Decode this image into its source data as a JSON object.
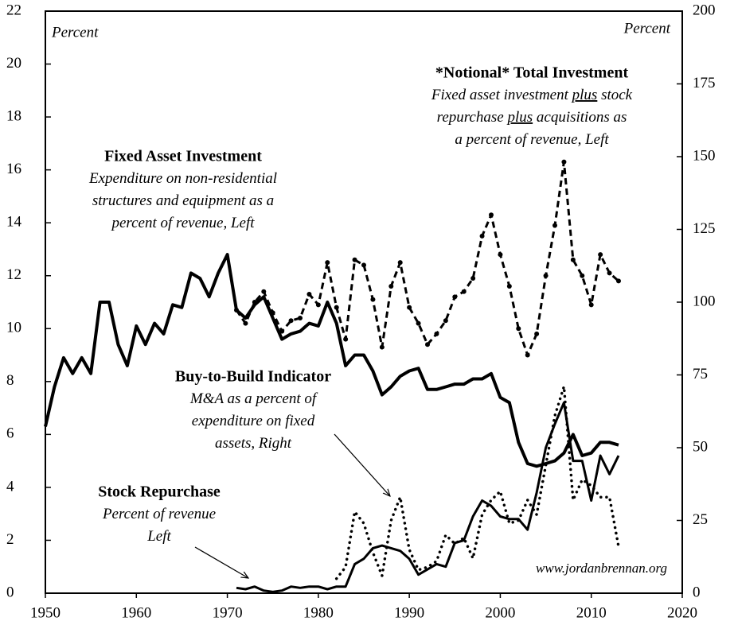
{
  "chart_data": {
    "type": "line",
    "xlim": [
      1950,
      2020
    ],
    "xticks": [
      1950,
      1960,
      1970,
      1980,
      1990,
      2000,
      2010,
      2020
    ],
    "ylim": [
      0,
      22
    ],
    "yticks": [
      0,
      2,
      4,
      6,
      8,
      10,
      12,
      14,
      16,
      18,
      20,
      22
    ],
    "y2lim": [
      0,
      200
    ],
    "y2ticks": [
      0,
      25,
      50,
      75,
      100,
      125,
      150,
      175,
      200
    ],
    "ylabel": "Percent",
    "y2label": "Percent",
    "source": "www.jordanbrennan.org",
    "series": [
      {
        "name": "Fixed Asset Investment",
        "color": "#000000",
        "style": "solid",
        "width": 4,
        "x": [
          1950,
          1951,
          1952,
          1953,
          1954,
          1955,
          1956,
          1957,
          1958,
          1959,
          1960,
          1961,
          1962,
          1963,
          1964,
          1965,
          1966,
          1967,
          1968,
          1969,
          1970,
          1971,
          1972,
          1973,
          1974,
          1975,
          1976,
          1977,
          1978,
          1979,
          1980,
          1981,
          1982,
          1983,
          1984,
          1985,
          1986,
          1987,
          1988,
          1989,
          1990,
          1991,
          1992,
          1993,
          1994,
          1995,
          1996,
          1997,
          1998,
          1999,
          2000,
          2001,
          2002,
          2003,
          2004,
          2005,
          2006,
          2007,
          2008,
          2009,
          2010,
          2011,
          2012,
          2013
        ],
        "values": [
          6.3,
          7.8,
          8.9,
          8.3,
          8.9,
          8.3,
          11.0,
          11.0,
          9.4,
          8.6,
          10.1,
          9.4,
          10.2,
          9.8,
          10.9,
          10.8,
          12.1,
          11.9,
          11.2,
          12.1,
          12.8,
          10.7,
          10.4,
          10.9,
          11.2,
          10.4,
          9.6,
          9.8,
          9.9,
          10.2,
          10.1,
          11.0,
          10.2,
          8.6,
          9.0,
          9.0,
          8.4,
          7.5,
          7.8,
          8.2,
          8.4,
          8.5,
          7.7,
          7.7,
          7.8,
          7.9,
          7.9,
          8.1,
          8.1,
          8.3,
          7.4,
          7.2,
          5.7,
          4.9,
          4.8,
          4.9,
          5.0,
          5.3,
          6.0,
          5.2,
          5.3,
          5.7,
          5.7,
          5.6
        ]
      },
      {
        "name": "*Notional* Total Investment",
        "color": "#000000",
        "style": "dashed",
        "width": 3,
        "markers": true,
        "x": [
          1971,
          1972,
          1973,
          1974,
          1975,
          1976,
          1977,
          1978,
          1979,
          1980,
          1981,
          1982,
          1983,
          1984,
          1985,
          1986,
          1987,
          1988,
          1989,
          1990,
          1991,
          1992,
          1993,
          1994,
          1995,
          1996,
          1997,
          1998,
          1999,
          2000,
          2001,
          2002,
          2003,
          2004,
          2005,
          2006,
          2007,
          2008,
          2009,
          2010,
          2011,
          2012,
          2013
        ],
        "values": [
          10.7,
          10.2,
          11.0,
          11.4,
          10.6,
          9.9,
          10.3,
          10.4,
          11.3,
          10.9,
          12.5,
          10.8,
          9.6,
          12.6,
          12.4,
          11.1,
          9.3,
          11.6,
          12.5,
          10.8,
          10.2,
          9.4,
          9.8,
          10.3,
          11.2,
          11.4,
          11.9,
          13.5,
          14.3,
          12.8,
          11.6,
          10.0,
          9.0,
          9.8,
          12.0,
          13.9,
          16.3,
          12.6,
          12.0,
          10.9,
          12.8,
          12.1,
          11.8
        ]
      },
      {
        "name": "Stock Repurchase",
        "color": "#000000",
        "style": "solid",
        "width": 3,
        "x": [
          1971,
          1972,
          1973,
          1974,
          1975,
          1976,
          1977,
          1978,
          1979,
          1980,
          1981,
          1982,
          1983,
          1984,
          1985,
          1986,
          1987,
          1988,
          1989,
          1990,
          1991,
          1992,
          1993,
          1994,
          1995,
          1996,
          1997,
          1998,
          1999,
          2000,
          2001,
          2002,
          2003,
          2004,
          2005,
          2006,
          2007,
          2008,
          2009,
          2010,
          2011,
          2012,
          2013
        ],
        "values": [
          0.2,
          0.15,
          0.25,
          0.1,
          0.05,
          0.1,
          0.25,
          0.2,
          0.25,
          0.25,
          0.15,
          0.25,
          0.25,
          1.1,
          1.3,
          1.7,
          1.8,
          1.7,
          1.6,
          1.3,
          0.7,
          0.9,
          1.1,
          1.0,
          1.9,
          2.0,
          2.9,
          3.5,
          3.3,
          2.9,
          2.8,
          2.8,
          2.4,
          3.8,
          5.5,
          6.4,
          7.2,
          5.0,
          5.0,
          3.5,
          5.2,
          4.5,
          5.2
        ]
      },
      {
        "name": "Buy-to-Build Indicator",
        "color": "#000000",
        "style": "dotted",
        "width": 3.5,
        "axis": "y2",
        "x": [
          1982,
          1983,
          1984,
          1985,
          1986,
          1987,
          1988,
          1989,
          1990,
          1991,
          1992,
          1993,
          1994,
          1995,
          1996,
          1997,
          1998,
          1999,
          2000,
          2001,
          2002,
          2003,
          2004,
          2005,
          2006,
          2007,
          2008,
          2009,
          2010,
          2011,
          2012,
          2013
        ],
        "values": [
          5,
          9,
          28,
          24,
          14,
          6,
          25,
          33,
          15,
          8,
          9,
          11,
          20,
          17,
          19,
          12,
          27,
          32,
          35,
          24,
          25,
          32,
          27,
          44,
          61,
          71,
          32,
          39,
          37,
          33,
          33,
          16
        ]
      }
    ],
    "annotations": [
      {
        "title": "*Notional* Total Investment",
        "lines": [
          [
            "Fixed asset investment ",
            "plus",
            " stock"
          ],
          [
            "repurchase ",
            "plus",
            " acquisitions as"
          ],
          [
            "a percent of  revenue, Left"
          ]
        ]
      },
      {
        "title": "Fixed Asset Investment",
        "lines": [
          [
            "Expenditure on non-residential"
          ],
          [
            "structures and equipment as a"
          ],
          [
            "percent of revenue, Left"
          ]
        ]
      },
      {
        "title": "Buy-to-Build Indicator",
        "lines": [
          [
            "M&A as a percent of"
          ],
          [
            "expenditure on fixed"
          ],
          [
            "assets, Right"
          ]
        ]
      },
      {
        "title": "Stock Repurchase",
        "lines": [
          [
            "Percent of revenue"
          ],
          [
            "Left"
          ]
        ]
      }
    ]
  }
}
